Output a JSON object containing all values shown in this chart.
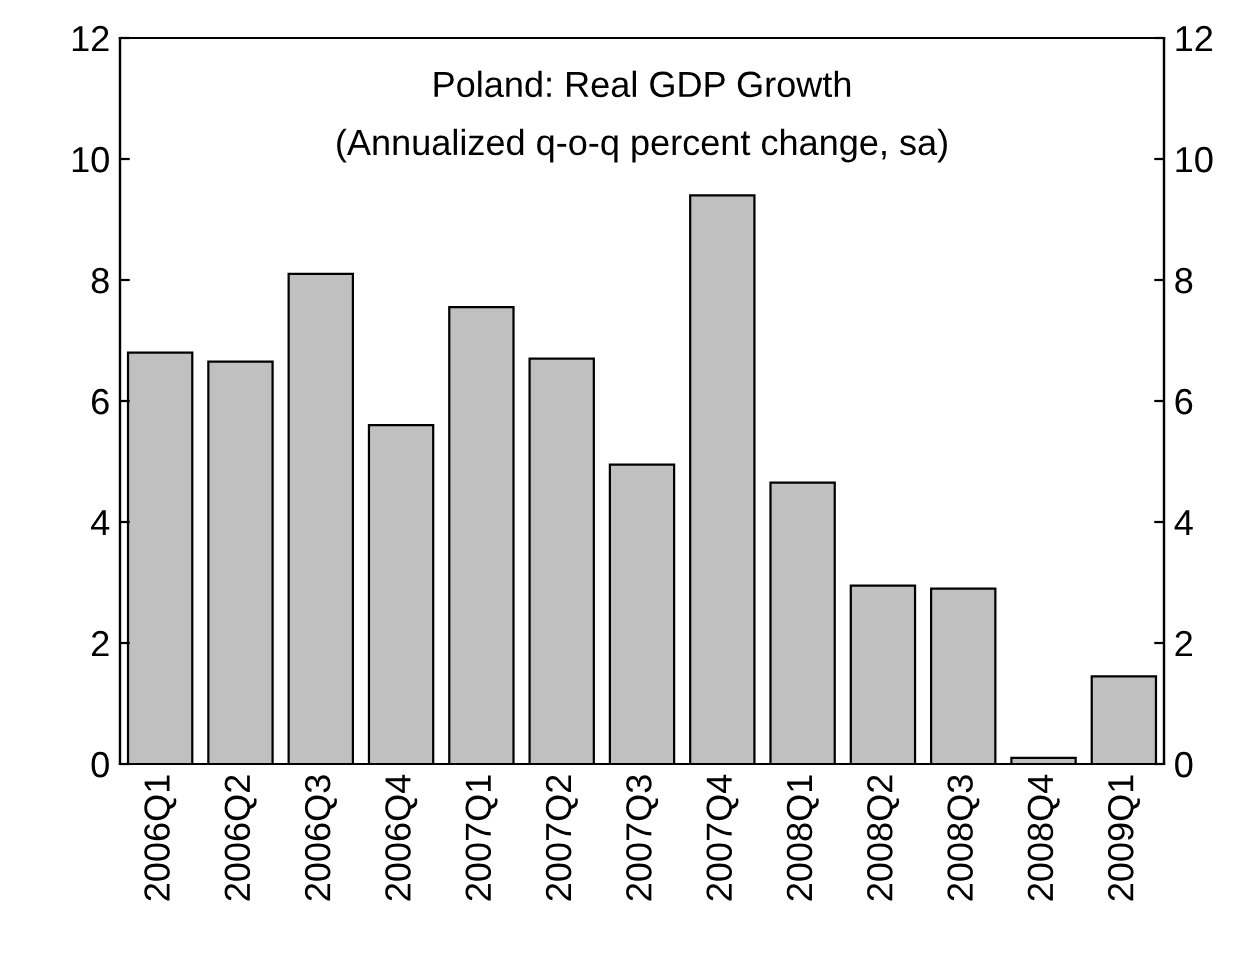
{
  "chart_data": {
    "type": "bar",
    "title": "Poland: Real GDP Growth",
    "subtitle": "(Annualized q-o-q percent change, sa)",
    "categories": [
      "2006Q1",
      "2006Q2",
      "2006Q3",
      "2006Q4",
      "2007Q1",
      "2007Q2",
      "2007Q3",
      "2007Q4",
      "2008Q1",
      "2008Q2",
      "2008Q3",
      "2008Q4",
      "2009Q1"
    ],
    "values": [
      6.8,
      6.65,
      8.1,
      5.6,
      7.55,
      6.7,
      4.95,
      9.4,
      4.65,
      2.95,
      2.9,
      0.1,
      1.45
    ],
    "color": "#c0c0c0",
    "ylim": [
      0,
      12
    ],
    "yticks": [
      0,
      2,
      4,
      6,
      8,
      10,
      12
    ],
    "y2lim": [
      0,
      12
    ],
    "y2ticks": [
      0,
      2,
      4,
      6,
      8,
      10,
      12
    ],
    "grid": false
  }
}
